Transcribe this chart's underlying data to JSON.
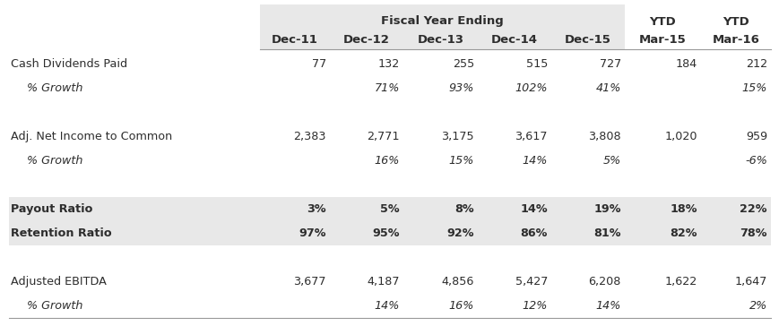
{
  "title_main": "Fiscal Year Ending",
  "col_headers": [
    "Dec-11",
    "Dec-12",
    "Dec-13",
    "Dec-14",
    "Dec-15",
    "Mar-15",
    "Mar-16"
  ],
  "rows": [
    {
      "label": "Cash Dividends Paid",
      "indent": false,
      "italic": false,
      "bold": false,
      "values": [
        "77",
        "132",
        "255",
        "515",
        "727",
        "184",
        "212"
      ],
      "bg": "white"
    },
    {
      "label": "% Growth",
      "indent": true,
      "italic": true,
      "bold": false,
      "values": [
        "",
        "71%",
        "93%",
        "102%",
        "41%",
        "",
        "15%"
      ],
      "bg": "white"
    },
    {
      "label": "",
      "indent": false,
      "italic": false,
      "bold": false,
      "values": [
        "",
        "",
        "",
        "",
        "",
        "",
        ""
      ],
      "bg": "white"
    },
    {
      "label": "Adj. Net Income to Common",
      "indent": false,
      "italic": false,
      "bold": false,
      "values": [
        "2,383",
        "2,771",
        "3,175",
        "3,617",
        "3,808",
        "1,020",
        "959"
      ],
      "bg": "white"
    },
    {
      "label": "% Growth",
      "indent": true,
      "italic": true,
      "bold": false,
      "values": [
        "",
        "16%",
        "15%",
        "14%",
        "5%",
        "",
        "-6%"
      ],
      "bg": "white"
    },
    {
      "label": "",
      "indent": false,
      "italic": false,
      "bold": false,
      "values": [
        "",
        "",
        "",
        "",
        "",
        "",
        ""
      ],
      "bg": "white"
    },
    {
      "label": "Payout Ratio",
      "indent": false,
      "italic": false,
      "bold": true,
      "values": [
        "3%",
        "5%",
        "8%",
        "14%",
        "19%",
        "18%",
        "22%"
      ],
      "bg": "shaded"
    },
    {
      "label": "Retention Ratio",
      "indent": false,
      "italic": false,
      "bold": true,
      "values": [
        "97%",
        "95%",
        "92%",
        "86%",
        "81%",
        "82%",
        "78%"
      ],
      "bg": "shaded"
    },
    {
      "label": "",
      "indent": false,
      "italic": false,
      "bold": false,
      "values": [
        "",
        "",
        "",
        "",
        "",
        "",
        ""
      ],
      "bg": "white"
    },
    {
      "label": "Adjusted EBITDA",
      "indent": false,
      "italic": false,
      "bold": false,
      "values": [
        "3,677",
        "4,187",
        "4,856",
        "5,427",
        "6,208",
        "1,622",
        "1,647"
      ],
      "bg": "white"
    },
    {
      "label": "% Growth",
      "indent": true,
      "italic": true,
      "bold": false,
      "values": [
        "",
        "14%",
        "16%",
        "12%",
        "14%",
        "",
        "2%"
      ],
      "bg": "white"
    }
  ],
  "shaded_color": "#e8e8e8",
  "header_shade_color": "#e8e8e8",
  "line_color": "#999999",
  "text_color": "#2d2d2d",
  "bg_color": "#ffffff",
  "header_fontsize": 9.5,
  "row_fontsize": 9.2,
  "fig_width": 8.7,
  "fig_height": 3.64,
  "dpi": 100
}
